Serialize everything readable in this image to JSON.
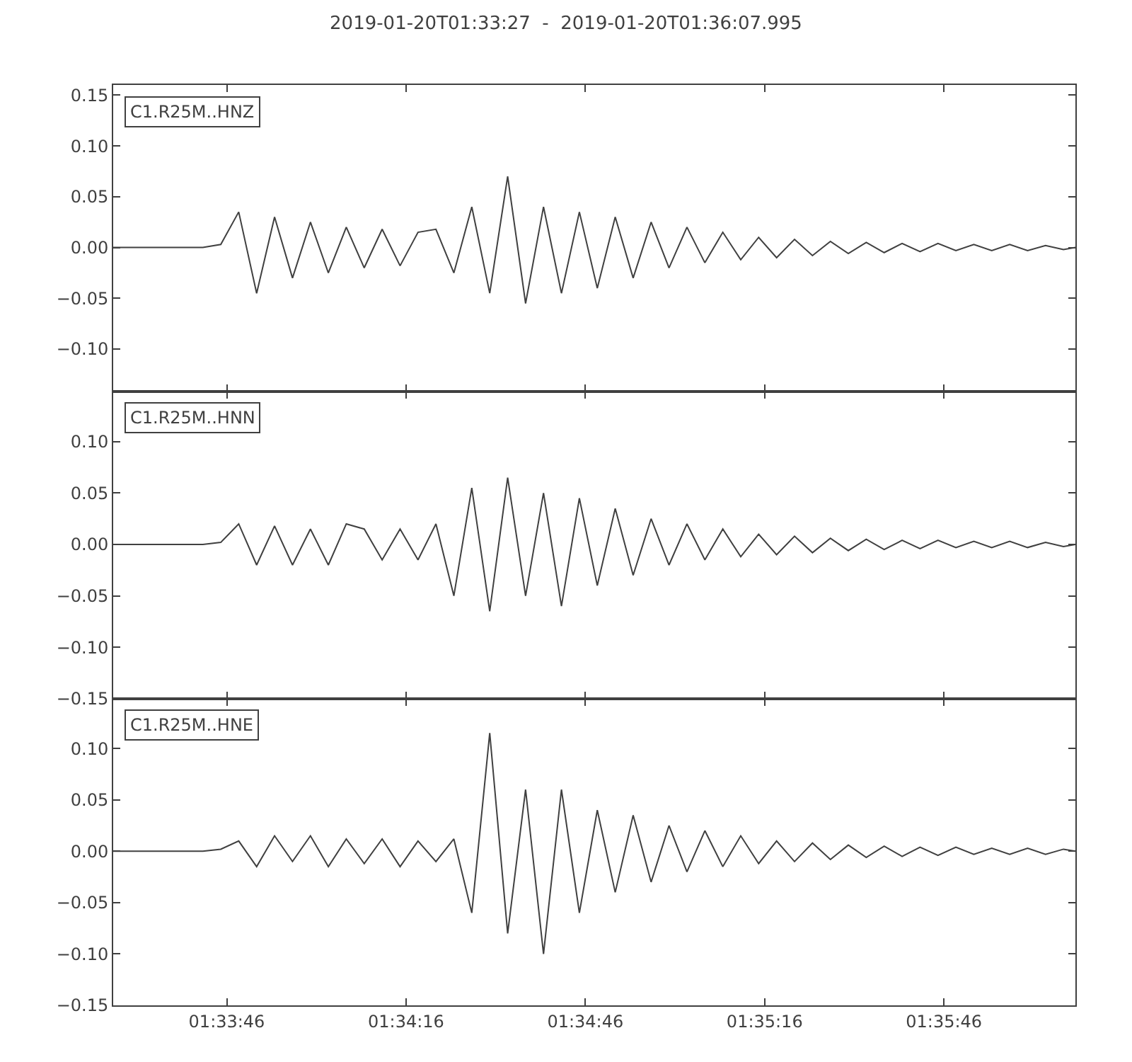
{
  "chart_data": [
    {
      "type": "line",
      "title": "2019-01-20T01:33:27  -  2019-01-20T01:36:07.995",
      "annotations": [
        "C1.R25M..HNZ"
      ],
      "tick_labels": "y",
      "x": [
        "2019-01-20T01:33:27",
        "2019-01-20T01:33:30",
        "2019-01-20T01:33:33",
        "2019-01-20T01:33:36",
        "2019-01-20T01:33:39",
        "2019-01-20T01:33:42",
        "2019-01-20T01:33:45",
        "2019-01-20T01:33:48",
        "2019-01-20T01:33:51",
        "2019-01-20T01:33:54",
        "2019-01-20T01:33:57",
        "2019-01-20T01:34:00",
        "2019-01-20T01:34:03",
        "2019-01-20T01:34:06",
        "2019-01-20T01:34:09",
        "2019-01-20T01:34:12",
        "2019-01-20T01:34:15",
        "2019-01-20T01:34:18",
        "2019-01-20T01:34:21",
        "2019-01-20T01:34:24",
        "2019-01-20T01:34:27",
        "2019-01-20T01:34:30",
        "2019-01-20T01:34:33",
        "2019-01-20T01:34:36",
        "2019-01-20T01:34:39",
        "2019-01-20T01:34:42",
        "2019-01-20T01:34:45",
        "2019-01-20T01:34:48",
        "2019-01-20T01:34:51",
        "2019-01-20T01:34:54",
        "2019-01-20T01:34:57",
        "2019-01-20T01:35:00",
        "2019-01-20T01:35:03",
        "2019-01-20T01:35:06",
        "2019-01-20T01:35:09",
        "2019-01-20T01:35:12",
        "2019-01-20T01:35:15",
        "2019-01-20T01:35:18",
        "2019-01-20T01:35:21",
        "2019-01-20T01:35:24",
        "2019-01-20T01:35:27",
        "2019-01-20T01:35:30",
        "2019-01-20T01:35:33",
        "2019-01-20T01:35:36",
        "2019-01-20T01:35:39",
        "2019-01-20T01:35:42",
        "2019-01-20T01:35:45",
        "2019-01-20T01:35:48",
        "2019-01-20T01:35:51",
        "2019-01-20T01:35:54",
        "2019-01-20T01:35:57",
        "2019-01-20T01:36:00",
        "2019-01-20T01:36:03",
        "2019-01-20T01:36:06",
        "2019-01-20T01:36:07.995"
      ],
      "series": [
        {
          "color": "#404040",
          "values": [
            0,
            0,
            0,
            0,
            0,
            0,
            0.003,
            0.035,
            -0.045,
            0.03,
            -0.03,
            0.025,
            -0.025,
            0.02,
            -0.02,
            0.018,
            -0.018,
            0.015,
            0.018,
            -0.025,
            0.04,
            -0.045,
            0.07,
            -0.055,
            0.04,
            -0.045,
            0.035,
            -0.04,
            0.03,
            -0.03,
            0.025,
            -0.02,
            0.02,
            -0.015,
            0.015,
            -0.012,
            0.01,
            -0.01,
            0.008,
            -0.008,
            0.006,
            -0.006,
            0.005,
            -0.005,
            0.004,
            -0.004,
            0.004,
            -0.003,
            0.003,
            -0.003,
            0.003,
            -0.003,
            0.002,
            -0.002,
            0
          ]
        }
      ],
      "xlim": [
        "2019-01-20T01:33:27",
        "2019-01-20T01:36:07.995"
      ],
      "xticks": [
        {
          "value": "2019-01-20T01:33:46",
          "label": null
        },
        {
          "value": "2019-01-20T01:34:16",
          "label": null
        },
        {
          "value": "2019-01-20T01:34:46",
          "label": null
        },
        {
          "value": "2019-01-20T01:35:16",
          "label": null
        },
        {
          "value": "2019-01-20T01:35:46",
          "label": null
        }
      ],
      "ylim": [
        -0.142,
        0.16
      ],
      "yticks": [
        {
          "value": -0.1,
          "label": "−0.10"
        },
        {
          "value": -0.05,
          "label": "−0.05"
        },
        {
          "value": 0,
          "label": "0.00"
        },
        {
          "value": 0.05,
          "label": "0.05"
        },
        {
          "value": 0.1,
          "label": "0.10"
        },
        {
          "value": 0.15,
          "label": "0.15"
        }
      ]
    },
    {
      "type": "line",
      "annotations": [
        "C1.R25M..HNN"
      ],
      "tick_labels": "y",
      "yticks": [
        {
          "value": -0.15,
          "label": "−0.15"
        },
        {
          "value": -0.1,
          "label": "−0.10"
        },
        {
          "value": -0.05,
          "label": "−0.05"
        },
        {
          "value": 0,
          "label": "0.00"
        },
        {
          "value": 0.05,
          "label": "0.05"
        },
        {
          "value": 0.1,
          "label": "0.10"
        }
      ],
      "x": [
        "2019-01-20T01:33:27",
        "2019-01-20T01:33:30",
        "2019-01-20T01:33:33",
        "2019-01-20T01:33:36",
        "2019-01-20T01:33:39",
        "2019-01-20T01:33:42",
        "2019-01-20T01:33:45",
        "2019-01-20T01:33:48",
        "2019-01-20T01:33:51",
        "2019-01-20T01:33:54",
        "2019-01-20T01:33:57",
        "2019-01-20T01:34:00",
        "2019-01-20T01:34:03",
        "2019-01-20T01:34:06",
        "2019-01-20T01:34:09",
        "2019-01-20T01:34:12",
        "2019-01-20T01:34:15",
        "2019-01-20T01:34:18",
        "2019-01-20T01:34:21",
        "2019-01-20T01:34:24",
        "2019-01-20T01:34:27",
        "2019-01-20T01:34:30",
        "2019-01-20T01:34:33",
        "2019-01-20T01:34:36",
        "2019-01-20T01:34:39",
        "2019-01-20T01:34:42",
        "2019-01-20T01:34:45",
        "2019-01-20T01:34:48",
        "2019-01-20T01:34:51",
        "2019-01-20T01:34:54",
        "2019-01-20T01:34:57",
        "2019-01-20T01:35:00",
        "2019-01-20T01:35:03",
        "2019-01-20T01:35:06",
        "2019-01-20T01:35:09",
        "2019-01-20T01:35:12",
        "2019-01-20T01:35:15",
        "2019-01-20T01:35:18",
        "2019-01-20T01:35:21",
        "2019-01-20T01:35:24",
        "2019-01-20T01:35:27",
        "2019-01-20T01:35:30",
        "2019-01-20T01:35:33",
        "2019-01-20T01:35:36",
        "2019-01-20T01:35:39",
        "2019-01-20T01:35:42",
        "2019-01-20T01:35:45",
        "2019-01-20T01:35:48",
        "2019-01-20T01:35:51",
        "2019-01-20T01:35:54",
        "2019-01-20T01:35:57",
        "2019-01-20T01:36:00",
        "2019-01-20T01:36:03",
        "2019-01-20T01:36:06",
        "2019-01-20T01:36:07.995"
      ],
      "series": [
        {
          "color": "#404040",
          "values": [
            0,
            0,
            0,
            0,
            0,
            0,
            0.002,
            0.02,
            -0.02,
            0.018,
            -0.02,
            0.015,
            -0.02,
            0.02,
            0.015,
            -0.015,
            0.015,
            -0.015,
            0.02,
            -0.05,
            0.055,
            -0.065,
            0.065,
            -0.05,
            0.05,
            -0.06,
            0.045,
            -0.04,
            0.035,
            -0.03,
            0.025,
            -0.02,
            0.02,
            -0.015,
            0.015,
            -0.012,
            0.01,
            -0.01,
            0.008,
            -0.008,
            0.006,
            -0.006,
            0.005,
            -0.005,
            0.004,
            -0.004,
            0.004,
            -0.003,
            0.003,
            -0.003,
            0.003,
            -0.003,
            0.002,
            -0.002,
            0
          ]
        }
      ],
      "xlim": [
        "2019-01-20T01:33:27",
        "2019-01-20T01:36:07.995"
      ],
      "xticks": [
        {
          "value": "2019-01-20T01:33:46",
          "label": null
        },
        {
          "value": "2019-01-20T01:34:16",
          "label": null
        },
        {
          "value": "2019-01-20T01:34:46",
          "label": null
        },
        {
          "value": "2019-01-20T01:35:16",
          "label": null
        },
        {
          "value": "2019-01-20T01:35:46",
          "label": null
        }
      ],
      "ylim": [
        -0.15,
        0.1486
      ]
    },
    {
      "type": "line",
      "annotations": [
        "C1.R25M..HNE"
      ],
      "x": [
        "2019-01-20T01:33:27",
        "2019-01-20T01:33:30",
        "2019-01-20T01:33:33",
        "2019-01-20T01:33:36",
        "2019-01-20T01:33:39",
        "2019-01-20T01:33:42",
        "2019-01-20T01:33:45",
        "2019-01-20T01:33:48",
        "2019-01-20T01:33:51",
        "2019-01-20T01:33:54",
        "2019-01-20T01:33:57",
        "2019-01-20T01:34:00",
        "2019-01-20T01:34:03",
        "2019-01-20T01:34:06",
        "2019-01-20T01:34:09",
        "2019-01-20T01:34:12",
        "2019-01-20T01:34:15",
        "2019-01-20T01:34:18",
        "2019-01-20T01:34:21",
        "2019-01-20T01:34:24",
        "2019-01-20T01:34:27",
        "2019-01-20T01:34:30",
        "2019-01-20T01:34:33",
        "2019-01-20T01:34:36",
        "2019-01-20T01:34:39",
        "2019-01-20T01:34:42",
        "2019-01-20T01:34:45",
        "2019-01-20T01:34:48",
        "2019-01-20T01:34:51",
        "2019-01-20T01:34:54",
        "2019-01-20T01:34:57",
        "2019-01-20T01:35:00",
        "2019-01-20T01:35:03",
        "2019-01-20T01:35:06",
        "2019-01-20T01:35:09",
        "2019-01-20T01:35:12",
        "2019-01-20T01:35:15",
        "2019-01-20T01:35:18",
        "2019-01-20T01:35:21",
        "2019-01-20T01:35:24",
        "2019-01-20T01:35:27",
        "2019-01-20T01:35:30",
        "2019-01-20T01:35:33",
        "2019-01-20T01:35:36",
        "2019-01-20T01:35:39",
        "2019-01-20T01:35:42",
        "2019-01-20T01:35:45",
        "2019-01-20T01:35:48",
        "2019-01-20T01:35:51",
        "2019-01-20T01:35:54",
        "2019-01-20T01:35:57",
        "2019-01-20T01:36:00",
        "2019-01-20T01:36:03",
        "2019-01-20T01:36:06",
        "2019-01-20T01:36:07.995"
      ],
      "series": [
        {
          "color": "#404040",
          "values": [
            0,
            0,
            0,
            0,
            0,
            0,
            0.002,
            0.01,
            -0.015,
            0.015,
            -0.01,
            0.015,
            -0.015,
            0.012,
            -0.012,
            0.012,
            -0.015,
            0.01,
            -0.01,
            0.012,
            -0.06,
            0.115,
            -0.08,
            0.06,
            -0.1,
            0.06,
            -0.06,
            0.04,
            -0.04,
            0.035,
            -0.03,
            0.025,
            -0.02,
            0.02,
            -0.015,
            0.015,
            -0.012,
            0.01,
            -0.01,
            0.008,
            -0.008,
            0.006,
            -0.006,
            0.005,
            -0.005,
            0.004,
            -0.004,
            0.004,
            -0.003,
            0.003,
            -0.003,
            0.003,
            -0.003,
            0.002,
            0
          ]
        }
      ],
      "xlim": [
        "2019-01-20T01:33:27",
        "2019-01-20T01:36:07.995"
      ],
      "xticks": [
        {
          "value": "2019-01-20T01:33:46",
          "label": "01:33:46"
        },
        {
          "value": "2019-01-20T01:34:16",
          "label": "01:34:16"
        },
        {
          "value": "2019-01-20T01:34:46",
          "label": "01:34:46"
        },
        {
          "value": "2019-01-20T01:35:16",
          "label": "01:35:16"
        },
        {
          "value": "2019-01-20T01:35:46",
          "label": "01:35:46"
        }
      ],
      "ylim": [
        -0.15,
        0.1486
      ],
      "yticks": [
        {
          "value": -0.15,
          "label": "−0.15"
        },
        {
          "value": -0.1,
          "label": "−0.10"
        },
        {
          "value": -0.05,
          "label": "−0.05"
        },
        {
          "value": 0,
          "label": "0.00"
        },
        {
          "value": 0.05,
          "label": "0.05"
        },
        {
          "value": 0.1,
          "label": "0.10"
        }
      ]
    }
  ]
}
